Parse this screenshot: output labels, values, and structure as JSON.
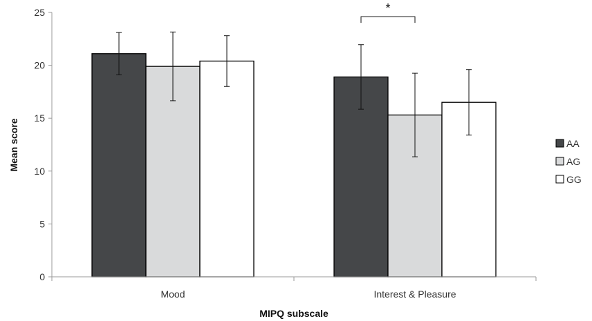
{
  "chart_data": {
    "type": "bar",
    "title": "",
    "xlabel": "MIPQ subscale",
    "ylabel": "Mean score",
    "ylim": [
      0,
      25
    ],
    "yticks": [
      0,
      5,
      10,
      15,
      20,
      25
    ],
    "grid": false,
    "legend_position": "right",
    "categories": [
      "Mood",
      "Interest & Pleasure"
    ],
    "series": [
      {
        "name": "AA",
        "color": "#454749",
        "values": [
          21.1,
          18.9
        ],
        "errors": [
          2.0,
          3.05
        ]
      },
      {
        "name": "AG",
        "color": "#d9dadb",
        "values": [
          19.9,
          15.3
        ],
        "errors": [
          3.25,
          3.95
        ]
      },
      {
        "name": "GG",
        "color": "#ffffff",
        "values": [
          20.4,
          16.5
        ],
        "errors": [
          2.4,
          3.1
        ]
      }
    ],
    "annotations": [
      {
        "text": "*",
        "category_index": 1,
        "from_series": 0,
        "to_series": 1,
        "y": 24.6
      }
    ]
  }
}
